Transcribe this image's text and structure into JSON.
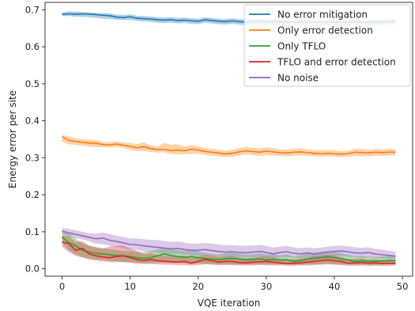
{
  "chart_data": {
    "type": "line",
    "title": "",
    "xlabel": "VQE iteration",
    "ylabel": "Energy error per site",
    "xlim": [
      -2.5,
      51.5
    ],
    "ylim": [
      -0.02,
      0.72
    ],
    "xticks": [
      0,
      10,
      20,
      30,
      40,
      50
    ],
    "yticks": [
      0.0,
      0.1,
      0.2,
      0.3,
      0.4,
      0.5,
      0.6,
      0.7
    ],
    "xtick_labels": [
      "0",
      "10",
      "20",
      "30",
      "40",
      "50"
    ],
    "ytick_labels": [
      "0.0",
      "0.1",
      "0.2",
      "0.3",
      "0.4",
      "0.5",
      "0.6",
      "0.7"
    ],
    "grid": false,
    "legend_position": "top-right",
    "x": [
      0,
      1,
      2,
      3,
      4,
      5,
      6,
      7,
      8,
      9,
      10,
      11,
      12,
      13,
      14,
      15,
      16,
      17,
      18,
      19,
      20,
      21,
      22,
      23,
      24,
      25,
      26,
      27,
      28,
      29,
      30,
      31,
      32,
      33,
      34,
      35,
      36,
      37,
      38,
      39,
      40,
      41,
      42,
      43,
      44,
      45,
      46,
      47,
      48,
      49
    ],
    "series": [
      {
        "name": "No error mitigation",
        "color": "#1f77b4",
        "values": [
          0.688,
          0.689,
          0.688,
          0.689,
          0.688,
          0.687,
          0.685,
          0.684,
          0.68,
          0.679,
          0.681,
          0.677,
          0.676,
          0.675,
          0.673,
          0.672,
          0.673,
          0.671,
          0.672,
          0.67,
          0.669,
          0.673,
          0.671,
          0.669,
          0.668,
          0.67,
          0.668,
          0.667,
          0.668,
          0.669,
          0.668,
          0.667,
          0.668,
          0.667,
          0.666,
          0.667,
          0.668,
          0.666,
          0.667,
          0.666,
          0.667,
          0.666,
          0.667,
          0.668,
          0.667,
          0.666,
          0.667,
          0.667,
          0.668,
          0.668
        ],
        "lower": [
          0.683,
          0.683,
          0.681,
          0.681,
          0.68,
          0.678,
          0.676,
          0.675,
          0.673,
          0.672,
          0.673,
          0.67,
          0.668,
          0.667,
          0.665,
          0.664,
          0.665,
          0.663,
          0.664,
          0.662,
          0.661,
          0.665,
          0.663,
          0.661,
          0.66,
          0.662,
          0.66,
          0.659,
          0.66,
          0.661,
          0.66,
          0.659,
          0.66,
          0.659,
          0.658,
          0.659,
          0.66,
          0.658,
          0.659,
          0.658,
          0.659,
          0.658,
          0.659,
          0.66,
          0.659,
          0.658,
          0.659,
          0.659,
          0.66,
          0.66
        ],
        "upper": [
          0.692,
          0.696,
          0.695,
          0.694,
          0.693,
          0.692,
          0.691,
          0.69,
          0.687,
          0.686,
          0.688,
          0.684,
          0.683,
          0.682,
          0.68,
          0.679,
          0.68,
          0.678,
          0.679,
          0.677,
          0.676,
          0.68,
          0.678,
          0.676,
          0.675,
          0.677,
          0.675,
          0.674,
          0.675,
          0.676,
          0.675,
          0.674,
          0.675,
          0.674,
          0.673,
          0.674,
          0.675,
          0.673,
          0.674,
          0.673,
          0.674,
          0.673,
          0.674,
          0.675,
          0.674,
          0.673,
          0.674,
          0.674,
          0.675,
          0.675
        ]
      },
      {
        "name": "Only error detection",
        "color": "#ff7f0e",
        "values": [
          0.357,
          0.347,
          0.344,
          0.342,
          0.34,
          0.339,
          0.336,
          0.335,
          0.337,
          0.334,
          0.331,
          0.327,
          0.33,
          0.325,
          0.322,
          0.323,
          0.319,
          0.321,
          0.319,
          0.323,
          0.321,
          0.317,
          0.315,
          0.313,
          0.31,
          0.312,
          0.316,
          0.319,
          0.317,
          0.315,
          0.318,
          0.316,
          0.314,
          0.313,
          0.315,
          0.316,
          0.314,
          0.312,
          0.311,
          0.312,
          0.311,
          0.31,
          0.311,
          0.315,
          0.314,
          0.313,
          0.315,
          0.314,
          0.315,
          0.315
        ],
        "lower": [
          0.343,
          0.336,
          0.335,
          0.333,
          0.33,
          0.329,
          0.328,
          0.328,
          0.33,
          0.327,
          0.322,
          0.318,
          0.318,
          0.316,
          0.314,
          0.315,
          0.31,
          0.309,
          0.309,
          0.31,
          0.311,
          0.308,
          0.306,
          0.304,
          0.302,
          0.303,
          0.306,
          0.309,
          0.307,
          0.305,
          0.307,
          0.306,
          0.305,
          0.304,
          0.305,
          0.306,
          0.305,
          0.304,
          0.303,
          0.304,
          0.303,
          0.302,
          0.303,
          0.305,
          0.304,
          0.304,
          0.306,
          0.305,
          0.306,
          0.307
        ],
        "upper": [
          0.362,
          0.358,
          0.352,
          0.35,
          0.349,
          0.348,
          0.343,
          0.342,
          0.344,
          0.341,
          0.34,
          0.337,
          0.342,
          0.334,
          0.33,
          0.34,
          0.335,
          0.336,
          0.33,
          0.334,
          0.331,
          0.326,
          0.324,
          0.322,
          0.319,
          0.322,
          0.326,
          0.329,
          0.327,
          0.325,
          0.328,
          0.326,
          0.323,
          0.322,
          0.325,
          0.326,
          0.323,
          0.321,
          0.32,
          0.321,
          0.32,
          0.318,
          0.319,
          0.325,
          0.324,
          0.322,
          0.324,
          0.323,
          0.324,
          0.323
        ]
      },
      {
        "name": "Only TFLO",
        "color": "#2ca02c",
        "values": [
          0.086,
          0.07,
          0.062,
          0.05,
          0.045,
          0.042,
          0.04,
          0.038,
          0.036,
          0.035,
          0.033,
          0.03,
          0.028,
          0.03,
          0.035,
          0.04,
          0.036,
          0.033,
          0.031,
          0.033,
          0.03,
          0.028,
          0.026,
          0.025,
          0.027,
          0.028,
          0.026,
          0.024,
          0.025,
          0.027,
          0.024,
          0.025,
          0.023,
          0.025,
          0.02,
          0.022,
          0.026,
          0.028,
          0.03,
          0.032,
          0.03,
          0.027,
          0.024,
          0.02,
          0.022,
          0.02,
          0.02,
          0.021,
          0.022,
          0.022
        ],
        "lower": [
          0.07,
          0.05,
          0.04,
          0.032,
          0.028,
          0.025,
          0.024,
          0.022,
          0.02,
          0.018,
          0.018,
          0.016,
          0.016,
          0.015,
          0.016,
          0.018,
          0.016,
          0.016,
          0.015,
          0.014,
          0.014,
          0.014,
          0.013,
          0.012,
          0.012,
          0.012,
          0.012,
          0.012,
          0.012,
          0.012,
          0.012,
          0.012,
          0.012,
          0.012,
          0.011,
          0.011,
          0.012,
          0.012,
          0.013,
          0.014,
          0.013,
          0.012,
          0.012,
          0.011,
          0.011,
          0.011,
          0.011,
          0.012,
          0.012,
          0.012
        ],
        "upper": [
          0.104,
          0.095,
          0.082,
          0.068,
          0.062,
          0.058,
          0.055,
          0.053,
          0.05,
          0.048,
          0.048,
          0.046,
          0.045,
          0.048,
          0.052,
          0.056,
          0.055,
          0.05,
          0.048,
          0.052,
          0.046,
          0.043,
          0.04,
          0.038,
          0.042,
          0.044,
          0.041,
          0.038,
          0.039,
          0.042,
          0.038,
          0.039,
          0.036,
          0.04,
          0.033,
          0.036,
          0.041,
          0.043,
          0.046,
          0.048,
          0.046,
          0.042,
          0.038,
          0.034,
          0.035,
          0.033,
          0.032,
          0.033,
          0.034,
          0.033
        ]
      },
      {
        "name": "TFLO and error detection",
        "color": "#d62728",
        "values": [
          0.072,
          0.068,
          0.05,
          0.055,
          0.04,
          0.035,
          0.032,
          0.03,
          0.033,
          0.035,
          0.03,
          0.025,
          0.022,
          0.025,
          0.022,
          0.02,
          0.019,
          0.018,
          0.02,
          0.015,
          0.02,
          0.025,
          0.022,
          0.018,
          0.02,
          0.02,
          0.017,
          0.016,
          0.018,
          0.019,
          0.02,
          0.018,
          0.016,
          0.014,
          0.015,
          0.016,
          0.018,
          0.02,
          0.022,
          0.024,
          0.022,
          0.02,
          0.015,
          0.016,
          0.017,
          0.015,
          0.016,
          0.014,
          0.015,
          0.015
        ],
        "lower": [
          0.06,
          0.045,
          0.035,
          0.03,
          0.025,
          0.022,
          0.02,
          0.018,
          0.018,
          0.018,
          0.016,
          0.014,
          0.013,
          0.013,
          0.012,
          0.011,
          0.011,
          0.01,
          0.01,
          0.009,
          0.01,
          0.012,
          0.011,
          0.01,
          0.01,
          0.01,
          0.009,
          0.009,
          0.009,
          0.01,
          0.01,
          0.009,
          0.009,
          0.008,
          0.008,
          0.009,
          0.009,
          0.01,
          0.011,
          0.012,
          0.011,
          0.01,
          0.008,
          0.008,
          0.009,
          0.008,
          0.008,
          0.008,
          0.008,
          0.009
        ],
        "upper": [
          0.09,
          0.088,
          0.072,
          0.075,
          0.062,
          0.058,
          0.055,
          0.06,
          0.062,
          0.063,
          0.055,
          0.048,
          0.04,
          0.042,
          0.038,
          0.035,
          0.034,
          0.034,
          0.036,
          0.03,
          0.034,
          0.038,
          0.036,
          0.032,
          0.033,
          0.034,
          0.03,
          0.028,
          0.03,
          0.032,
          0.034,
          0.031,
          0.028,
          0.025,
          0.026,
          0.028,
          0.03,
          0.034,
          0.036,
          0.038,
          0.036,
          0.032,
          0.026,
          0.027,
          0.028,
          0.025,
          0.026,
          0.024,
          0.025,
          0.024
        ]
      },
      {
        "name": "No noise",
        "color": "#9467bd",
        "values": [
          0.102,
          0.097,
          0.093,
          0.089,
          0.085,
          0.081,
          0.083,
          0.077,
          0.074,
          0.07,
          0.066,
          0.065,
          0.062,
          0.06,
          0.058,
          0.056,
          0.054,
          0.055,
          0.052,
          0.05,
          0.05,
          0.052,
          0.049,
          0.047,
          0.045,
          0.046,
          0.044,
          0.043,
          0.045,
          0.047,
          0.044,
          0.04,
          0.044,
          0.046,
          0.042,
          0.04,
          0.043,
          0.04,
          0.042,
          0.045,
          0.047,
          0.048,
          0.046,
          0.043,
          0.042,
          0.044,
          0.04,
          0.038,
          0.036,
          0.034
        ],
        "lower": [
          0.095,
          0.088,
          0.083,
          0.079,
          0.074,
          0.068,
          0.066,
          0.062,
          0.058,
          0.055,
          0.052,
          0.05,
          0.047,
          0.045,
          0.043,
          0.041,
          0.04,
          0.04,
          0.038,
          0.036,
          0.036,
          0.037,
          0.035,
          0.033,
          0.032,
          0.032,
          0.031,
          0.03,
          0.031,
          0.032,
          0.031,
          0.029,
          0.031,
          0.032,
          0.03,
          0.029,
          0.03,
          0.029,
          0.03,
          0.032,
          0.033,
          0.034,
          0.033,
          0.031,
          0.03,
          0.031,
          0.029,
          0.028,
          0.027,
          0.026
        ],
        "upper": [
          0.11,
          0.108,
          0.104,
          0.1,
          0.096,
          0.095,
          0.098,
          0.094,
          0.09,
          0.086,
          0.082,
          0.082,
          0.08,
          0.078,
          0.078,
          0.075,
          0.073,
          0.074,
          0.071,
          0.068,
          0.068,
          0.07,
          0.068,
          0.066,
          0.064,
          0.064,
          0.063,
          0.062,
          0.063,
          0.065,
          0.062,
          0.057,
          0.06,
          0.062,
          0.058,
          0.056,
          0.058,
          0.055,
          0.057,
          0.06,
          0.062,
          0.063,
          0.061,
          0.058,
          0.057,
          0.058,
          0.054,
          0.052,
          0.049,
          0.046
        ]
      }
    ]
  }
}
